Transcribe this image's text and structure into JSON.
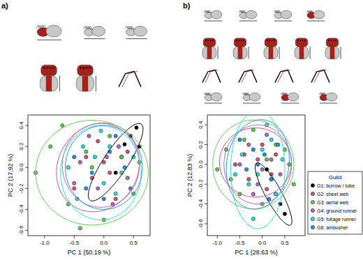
{
  "chart_data": [
    {
      "type": "scatter",
      "panel_label": "a)",
      "x_label": "PC 1 (50.19 %)",
      "y_label": "PC 2 (17.92 %)",
      "xlim": [
        -1.28,
        0.78
      ],
      "ylim": [
        -0.65,
        0.5
      ],
      "xticks": [
        {
          "value": -1.0,
          "label": "-1.0"
        },
        -0.5,
        {
          "value": 0,
          "label": "0.0"
        },
        0.5
      ],
      "yticks": [
        -0.6,
        -0.4,
        -0.2,
        {
          "value": 0,
          "label": "0.0"
        },
        0.2,
        0.4
      ],
      "series": [
        {
          "color": "#000000",
          "x": [
            0.55,
            0.45,
            0.3,
            0.6,
            0.2,
            0.35
          ],
          "y": [
            0.38,
            0.3,
            0.1,
            0.2,
            -0.05,
            0.22
          ],
          "ellipse": {
            "center": [
              0.2,
              0.05
            ],
            "u": [
              0.45,
              0.35
            ],
            "v": [
              -0.1,
              0.12
            ]
          }
        },
        {
          "color": "#df536b",
          "x": [
            -0.3,
            0.1,
            -0.1,
            0.4,
            -0.5,
            0.2,
            0.0,
            -0.2
          ],
          "y": [
            0.1,
            -0.05,
            0.25,
            0.15,
            -0.2,
            -0.3,
            0.05,
            -0.1
          ],
          "ellipse": {
            "center": [
              -0.1,
              0.0
            ],
            "u": [
              0.7,
              0.05
            ],
            "v": [
              0.0,
              0.42
            ]
          }
        },
        {
          "color": "#61d04f",
          "x": [
            -1.15,
            -0.9,
            -0.6,
            -0.4,
            0.1,
            0.5,
            -0.2,
            0.3,
            -0.7,
            0.0,
            -0.3,
            0.6
          ],
          "y": [
            -0.05,
            0.2,
            -0.35,
            -0.58,
            0.3,
            -0.25,
            0.0,
            0.1,
            0.4,
            -0.5,
            0.15,
            0.05
          ],
          "ellipse": {
            "center": [
              -0.2,
              -0.05
            ],
            "u": [
              0.95,
              0.0
            ],
            "v": [
              0.0,
              0.5
            ]
          }
        },
        {
          "color": "#b469c9",
          "x": [
            -0.4,
            -0.1,
            0.25,
            0.05,
            -0.25,
            0.4,
            -0.5,
            0.15
          ],
          "y": [
            0.05,
            -0.2,
            0.2,
            0.1,
            0.3,
            -0.1,
            -0.15,
            -0.35
          ],
          "ellipse": {
            "center": [
              -0.05,
              0.02
            ],
            "u": [
              0.65,
              0.0
            ],
            "v": [
              0.0,
              0.4
            ]
          }
        },
        {
          "color": "#28e2e5",
          "x": [
            -0.6,
            -0.35,
            0.0,
            0.3,
            -0.15,
            0.5,
            -0.05,
            0.2,
            -0.45,
            0.1
          ],
          "y": [
            0.0,
            0.2,
            -0.15,
            -0.05,
            0.1,
            0.1,
            0.35,
            -0.25,
            -0.3,
            0.2
          ],
          "ellipse": {
            "center": [
              -0.05,
              -0.05
            ],
            "u": [
              0.68,
              0.0
            ],
            "v": [
              0.0,
              0.45
            ]
          }
        },
        {
          "color": "#2297e6",
          "x": [
            -0.2,
            0.1,
            0.35,
            -0.5,
            0.0,
            0.2,
            -0.3,
            0.45
          ],
          "y": [
            -0.05,
            0.15,
            0.0,
            0.1,
            -0.3,
            0.3,
            -0.2,
            -0.2
          ],
          "ellipse": {
            "center": [
              0.0,
              0.0
            ],
            "u": [
              0.65,
              0.0
            ],
            "v": [
              0.0,
              0.4
            ]
          }
        }
      ]
    },
    {
      "type": "scatter",
      "panel_label": "b)",
      "x_label": "PC 1 (28.63 %)",
      "y_label": "PC 2 (12.83 %)",
      "xlim": [
        -1.22,
        0.95
      ],
      "ylim": [
        -0.72,
        0.5
      ],
      "xticks": [
        {
          "value": -1.0,
          "label": "-1.0"
        },
        -0.5,
        {
          "value": 0,
          "label": "0.0"
        },
        0.5
      ],
      "yticks": [
        -0.6,
        -0.4,
        -0.2,
        {
          "value": 0,
          "label": "0.0"
        },
        0.2,
        0.4
      ],
      "legend": "right",
      "legend_title": "Guild",
      "series": [
        {
          "name": "G1: burrow / tube",
          "color": "#000000",
          "x": [
            0.3,
            0.4,
            0.2,
            0.5,
            0.1
          ],
          "y": [
            -0.3,
            -0.4,
            -0.15,
            -0.5,
            -0.05
          ],
          "ellipse": {
            "center": [
              0.25,
              -0.3
            ],
            "u": [
              0.4,
              -0.3
            ],
            "v": [
              0.08,
              0.1
            ]
          }
        },
        {
          "name": "G2: sheet web",
          "color": "#df536b",
          "x": [
            -0.4,
            -0.1,
            0.2,
            0.0,
            -0.3,
            0.3,
            0.1,
            -0.6
          ],
          "y": [
            0.1,
            0.05,
            -0.1,
            0.2,
            -0.15,
            0.1,
            -0.25,
            0.0
          ],
          "ellipse": {
            "center": [
              -0.15,
              0.02
            ],
            "u": [
              0.8,
              0.0
            ],
            "v": [
              0.0,
              0.35
            ]
          }
        },
        {
          "name": "G3: aerial web",
          "color": "#61d04f",
          "x": [
            -1.0,
            -0.8,
            -0.5,
            0.6,
            0.7,
            -0.2,
            0.3,
            -0.4,
            0.0,
            0.5,
            -0.7,
            0.1
          ],
          "y": [
            -0.05,
            0.15,
            -0.3,
            0.0,
            -0.2,
            0.35,
            0.2,
            0.25,
            -0.4,
            0.15,
            -0.15,
            0.05
          ],
          "ellipse": {
            "center": [
              -0.2,
              0.0
            ],
            "u": [
              0.9,
              0.0
            ],
            "v": [
              0.0,
              0.45
            ]
          }
        },
        {
          "name": "G4: ground runner",
          "color": "#b469c9",
          "x": [
            -0.3,
            0.0,
            0.2,
            -0.5,
            0.1,
            -0.1,
            0.4,
            -0.2
          ],
          "y": [
            0.2,
            -0.05,
            0.05,
            0.0,
            0.3,
            -0.2,
            -0.1,
            -0.3
          ],
          "ellipse": {
            "center": [
              -0.1,
              0.0
            ],
            "u": [
              0.75,
              0.0
            ],
            "v": [
              0.0,
              0.4
            ]
          }
        },
        {
          "name": "G5: foliage runner",
          "color": "#28e2e5",
          "x": [
            -0.2,
            0.1,
            -0.45,
            0.3,
            0.0,
            -0.1,
            0.2,
            -0.3,
            0.45,
            -0.6
          ],
          "y": [
            -0.55,
            0.4,
            0.1,
            -0.3,
            0.15,
            -0.1,
            0.25,
            -0.2,
            0.05,
            -0.1
          ],
          "ellipse": {
            "center": [
              -0.1,
              -0.05
            ],
            "u": [
              0.6,
              0.0
            ],
            "v": [
              0.0,
              0.6
            ]
          }
        },
        {
          "name": "G6: ambusher",
          "color": "#2297e6",
          "x": [
            -0.1,
            0.2,
            -0.35,
            0.05,
            0.35,
            -0.2,
            0.15,
            -0.5
          ],
          "y": [
            0.0,
            -0.15,
            -0.05,
            0.1,
            0.2,
            0.15,
            -0.35,
            0.25
          ],
          "ellipse": {
            "center": [
              -0.1,
              0.0
            ],
            "u": [
              0.7,
              0.05
            ],
            "v": [
              0.0,
              0.45
            ]
          }
        }
      ]
    }
  ]
}
